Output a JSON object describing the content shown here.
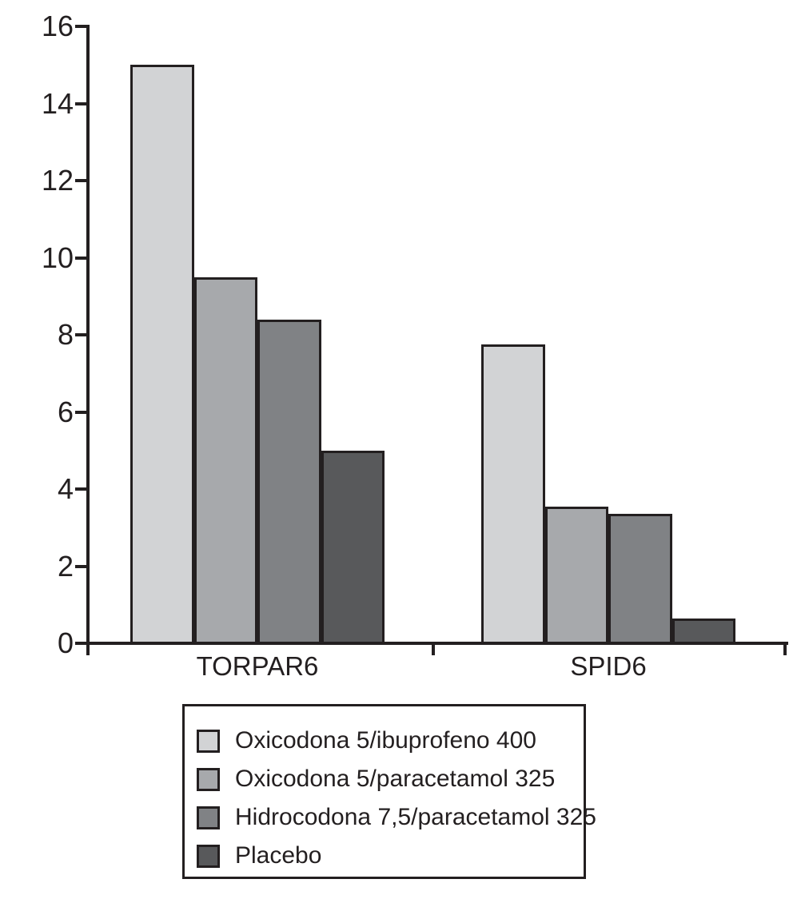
{
  "chart_data": {
    "type": "bar",
    "title": "",
    "xlabel": "",
    "ylabel": "",
    "categories": [
      "TORPAR6",
      "SPID6"
    ],
    "series": [
      {
        "name": "Oxicodona 5/ibuprofeno 400",
        "color": "#d2d3d5",
        "values": [
          15.0,
          7.75
        ]
      },
      {
        "name": "Oxicodona 5/paracetamol 325",
        "color": "#a7a9ac",
        "values": [
          9.5,
          3.55
        ]
      },
      {
        "name": "Hidrocodona 7,5/paracetamol 325",
        "color": "#808285",
        "values": [
          8.4,
          3.35
        ]
      },
      {
        "name": "Placebo",
        "color": "#58595b",
        "values": [
          5.0,
          0.65
        ]
      }
    ],
    "ylim": [
      0,
      16
    ],
    "yticks": [
      0,
      2,
      4,
      6,
      8,
      10,
      12,
      14,
      16
    ],
    "grid": false,
    "legend_position": "bottom-box",
    "axis_color": "#231f20",
    "background_color": "#ffffff"
  }
}
